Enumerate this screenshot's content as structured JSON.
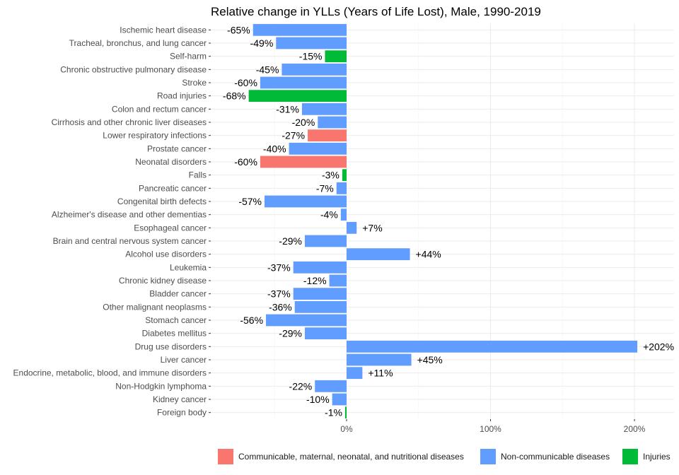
{
  "chart_data": {
    "type": "bar",
    "orientation": "horizontal",
    "title": "Relative change in YLLs (Years of Life Lost), Male, 1990-2019",
    "xlabel": "",
    "ylabel": "",
    "xlim": [
      -100,
      228
    ],
    "x_ticks": [
      0,
      100,
      200
    ],
    "x_tick_labels": [
      "0%",
      "100%",
      "200%"
    ],
    "grid": true,
    "legend_position": "bottom",
    "legend": [
      {
        "name": "Communicable, maternal, neonatal, and nutritional diseases",
        "color": "#F8766D"
      },
      {
        "name": "Non-communicable diseases",
        "color": "#619CFF"
      },
      {
        "name": "Injuries",
        "color": "#00BA38"
      }
    ],
    "categories": [
      "Ischemic heart disease",
      "Tracheal, bronchus, and lung cancer",
      "Self-harm",
      "Chronic obstructive pulmonary disease",
      "Stroke",
      "Road injuries",
      "Colon and rectum cancer",
      "Cirrhosis and other chronic liver diseases",
      "Lower respiratory infections",
      "Prostate cancer",
      "Neonatal disorders",
      "Falls",
      "Pancreatic cancer",
      "Congenital birth defects",
      "Alzheimer's disease and other dementias",
      "Esophageal cancer",
      "Brain and central nervous system cancer",
      "Alcohol use disorders",
      "Leukemia",
      "Chronic kidney disease",
      "Bladder cancer",
      "Other malignant neoplasms",
      "Stomach cancer",
      "Diabetes mellitus",
      "Drug use disorders",
      "Liver cancer",
      "Endocrine, metabolic, blood, and immune disorders",
      "Non-Hodgkin lymphoma",
      "Kidney cancer",
      "Foreign body"
    ],
    "values": [
      -65,
      -49,
      -15,
      -45,
      -60,
      -68,
      -31,
      -20,
      -27,
      -40,
      -60,
      -3,
      -7,
      -57,
      -4,
      7,
      -29,
      44,
      -37,
      -12,
      -37,
      -36,
      -56,
      -29,
      202,
      45,
      11,
      -22,
      -10,
      -1
    ],
    "value_labels": [
      "-65%",
      "-49%",
      "-15%",
      "-45%",
      "-60%",
      "-68%",
      "-31%",
      "-20%",
      "-27%",
      "-40%",
      "-60%",
      "-3%",
      "-7%",
      "-57%",
      "-4%",
      "+7%",
      "-29%",
      "+44%",
      "-37%",
      "-12%",
      "-37%",
      "-36%",
      "-56%",
      "-29%",
      "+202%",
      "+45%",
      "+11%",
      "-22%",
      "-10%",
      "-1%"
    ],
    "groups": [
      1,
      1,
      2,
      1,
      1,
      2,
      1,
      1,
      0,
      1,
      0,
      2,
      1,
      1,
      1,
      1,
      1,
      1,
      1,
      1,
      1,
      1,
      1,
      1,
      1,
      1,
      1,
      1,
      1,
      2
    ]
  }
}
